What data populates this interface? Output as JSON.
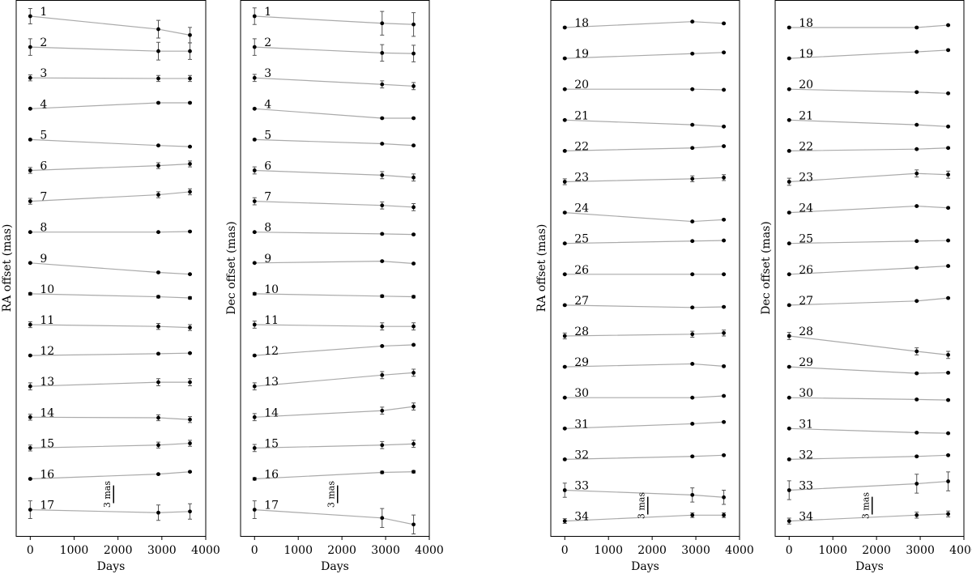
{
  "chart_data": [
    {
      "type": "offset-stack",
      "xlabel": "Days",
      "ylabel": "RA offset (mas)",
      "x": [
        0,
        2920,
        3640
      ],
      "xlim": [
        -320,
        4000
      ],
      "xticks": [
        0,
        1000,
        2000,
        3000,
        4000
      ],
      "line_color": "#aaaaaa",
      "color": "#000000",
      "scale_bar": {
        "value": 3,
        "label": "3 mas"
      },
      "series": [
        {
          "name": "1",
          "values": [
            0,
            -2.2,
            -3.2
          ],
          "errors": [
            1.3,
            1.5,
            1.3
          ]
        },
        {
          "name": "2",
          "values": [
            0,
            -0.7,
            -0.7
          ],
          "errors": [
            1.4,
            1.5,
            1.4
          ]
        },
        {
          "name": "3",
          "values": [
            0,
            -0.1,
            -0.1
          ],
          "errors": [
            0.5,
            0.5,
            0.5
          ]
        },
        {
          "name": "4",
          "values": [
            0,
            1.0,
            1.0
          ],
          "errors": [
            0.1,
            0.1,
            0.1
          ]
        },
        {
          "name": "5",
          "values": [
            0,
            -1.0,
            -1.2
          ],
          "errors": [
            0.1,
            0.1,
            0.1
          ]
        },
        {
          "name": "6",
          "values": [
            0,
            0.8,
            1.1
          ],
          "errors": [
            0.5,
            0.5,
            0.5
          ]
        },
        {
          "name": "7",
          "values": [
            0,
            1.1,
            1.6
          ],
          "errors": [
            0.5,
            0.5,
            0.5
          ]
        },
        {
          "name": "8",
          "values": [
            0,
            0,
            0.1
          ],
          "errors": [
            0.1,
            0.1,
            0.1
          ]
        },
        {
          "name": "9",
          "values": [
            0,
            -1.6,
            -1.9
          ],
          "errors": [
            0.1,
            0.1,
            0.1
          ]
        },
        {
          "name": "10",
          "values": [
            0,
            -0.5,
            -0.7
          ],
          "errors": [
            0.2,
            0.2,
            0.2
          ]
        },
        {
          "name": "11",
          "values": [
            0,
            -0.3,
            -0.5
          ],
          "errors": [
            0.5,
            0.5,
            0.5
          ]
        },
        {
          "name": "12",
          "values": [
            0,
            0.3,
            0.4
          ],
          "errors": [
            0.1,
            0.1,
            0.1
          ]
        },
        {
          "name": "13",
          "values": [
            0,
            0.7,
            0.7
          ],
          "errors": [
            0.6,
            0.6,
            0.6
          ]
        },
        {
          "name": "14",
          "values": [
            0,
            -0.1,
            -0.4
          ],
          "errors": [
            0.5,
            0.5,
            0.5
          ]
        },
        {
          "name": "15",
          "values": [
            0,
            0.5,
            0.8
          ],
          "errors": [
            0.5,
            0.5,
            0.5
          ]
        },
        {
          "name": "16",
          "values": [
            0,
            0.8,
            1.2
          ],
          "errors": [
            0.1,
            0.1,
            0.1
          ]
        },
        {
          "name": "17",
          "values": [
            0,
            -0.5,
            -0.3
          ],
          "errors": [
            1.5,
            1.3,
            1.3
          ]
        }
      ]
    },
    {
      "type": "offset-stack",
      "xlabel": "Days",
      "ylabel": "Dec offset (mas)",
      "x": [
        0,
        2920,
        3640
      ],
      "xlim": [
        -320,
        4000
      ],
      "xticks": [
        0,
        1000,
        2000,
        3000,
        4000
      ],
      "line_color": "#aaaaaa",
      "color": "#000000",
      "scale_bar": {
        "value": 3,
        "label": "3 mas"
      },
      "series": [
        {
          "name": "1",
          "values": [
            0,
            -1.2,
            -1.4
          ],
          "errors": [
            1.4,
            2.0,
            2.0
          ]
        },
        {
          "name": "2",
          "values": [
            0,
            -1.0,
            -1.1
          ],
          "errors": [
            1.4,
            1.4,
            1.4
          ]
        },
        {
          "name": "3",
          "values": [
            0,
            -1.1,
            -1.4
          ],
          "errors": [
            0.6,
            0.6,
            0.6
          ]
        },
        {
          "name": "4",
          "values": [
            0,
            -1.6,
            -1.6
          ],
          "errors": [
            0.1,
            0.1,
            0.1
          ]
        },
        {
          "name": "5",
          "values": [
            0,
            -0.7,
            -1.0
          ],
          "errors": [
            0.1,
            0.1,
            0.1
          ]
        },
        {
          "name": "6",
          "values": [
            0,
            -0.8,
            -1.2
          ],
          "errors": [
            0.6,
            0.6,
            0.6
          ]
        },
        {
          "name": "7",
          "values": [
            0,
            -0.7,
            -1.0
          ],
          "errors": [
            0.6,
            0.6,
            0.6
          ]
        },
        {
          "name": "8",
          "values": [
            0,
            -0.3,
            -0.4
          ],
          "errors": [
            0.1,
            0.1,
            0.1
          ]
        },
        {
          "name": "9",
          "values": [
            0,
            0.3,
            -0.1
          ],
          "errors": [
            0.1,
            0.1,
            0.1
          ]
        },
        {
          "name": "10",
          "values": [
            0,
            -0.4,
            -0.5
          ],
          "errors": [
            0.2,
            0.2,
            0.2
          ]
        },
        {
          "name": "11",
          "values": [
            0,
            -0.3,
            -0.3
          ],
          "errors": [
            0.6,
            0.6,
            0.6
          ]
        },
        {
          "name": "12",
          "values": [
            0,
            1.6,
            1.8
          ],
          "errors": [
            0.1,
            0.1,
            0.1
          ]
        },
        {
          "name": "13",
          "values": [
            0,
            1.9,
            2.3
          ],
          "errors": [
            0.6,
            0.6,
            0.6
          ]
        },
        {
          "name": "14",
          "values": [
            0,
            1.1,
            1.8
          ],
          "errors": [
            0.6,
            0.6,
            0.6
          ]
        },
        {
          "name": "15",
          "values": [
            0,
            0.5,
            0.7
          ],
          "errors": [
            0.6,
            0.6,
            0.6
          ]
        },
        {
          "name": "16",
          "values": [
            0,
            1.1,
            1.2
          ],
          "errors": [
            0.2,
            0.2,
            0.2
          ]
        },
        {
          "name": "17",
          "values": [
            0,
            -1.4,
            -2.5
          ],
          "errors": [
            1.5,
            1.6,
            1.6
          ]
        }
      ]
    },
    {
      "type": "offset-stack",
      "xlabel": "Days",
      "ylabel": "RA offset (mas)",
      "x": [
        0,
        2920,
        3640
      ],
      "xlim": [
        -320,
        4000
      ],
      "xticks": [
        0,
        1000,
        2000,
        3000,
        4000
      ],
      "line_color": "#aaaaaa",
      "color": "#000000",
      "scale_bar": {
        "value": 3,
        "label": "3 mas"
      },
      "series": [
        {
          "name": "18",
          "values": [
            0,
            1.0,
            0.7
          ],
          "errors": [
            0.1,
            0.1,
            0.1
          ]
        },
        {
          "name": "19",
          "values": [
            0,
            0.8,
            1.0
          ],
          "errors": [
            0.1,
            0.1,
            0.1
          ]
        },
        {
          "name": "20",
          "values": [
            0,
            0,
            -0.1
          ],
          "errors": [
            0.1,
            0.1,
            0.1
          ]
        },
        {
          "name": "21",
          "values": [
            0,
            -0.8,
            -1.1
          ],
          "errors": [
            0.1,
            0.1,
            0.1
          ]
        },
        {
          "name": "22",
          "values": [
            0,
            0.5,
            0.8
          ],
          "errors": [
            0.1,
            0.1,
            0.1
          ]
        },
        {
          "name": "23",
          "values": [
            0,
            0.5,
            0.7
          ],
          "errors": [
            0.5,
            0.5,
            0.5
          ]
        },
        {
          "name": "24",
          "values": [
            0,
            -1.5,
            -1.2
          ],
          "errors": [
            0.1,
            0.1,
            0.1
          ]
        },
        {
          "name": "25",
          "values": [
            0,
            0.4,
            0.5
          ],
          "errors": [
            0.1,
            0.1,
            0.1
          ]
        },
        {
          "name": "26",
          "values": [
            0,
            0,
            0
          ],
          "errors": [
            0.1,
            0.1,
            0.1
          ]
        },
        {
          "name": "27",
          "values": [
            0,
            -0.4,
            -0.3
          ],
          "errors": [
            0.1,
            0.1,
            0.1
          ]
        },
        {
          "name": "28",
          "values": [
            0,
            0.3,
            0.5
          ],
          "errors": [
            0.5,
            0.5,
            0.5
          ]
        },
        {
          "name": "29",
          "values": [
            0,
            0.5,
            0.1
          ],
          "errors": [
            0.1,
            0.1,
            0.1
          ]
        },
        {
          "name": "30",
          "values": [
            0,
            0,
            0.3
          ],
          "errors": [
            0.1,
            0.1,
            0.1
          ]
        },
        {
          "name": "31",
          "values": [
            0,
            0.8,
            1.1
          ],
          "errors": [
            0.1,
            0.1,
            0.1
          ]
        },
        {
          "name": "32",
          "values": [
            0,
            0.5,
            0.7
          ],
          "errors": [
            0.1,
            0.1,
            0.1
          ]
        },
        {
          "name": "33",
          "values": [
            0,
            -0.8,
            -1.2
          ],
          "errors": [
            1.2,
            1.2,
            1.2
          ]
        },
        {
          "name": "34",
          "values": [
            0,
            1.0,
            1.0
          ],
          "errors": [
            0.4,
            0.4,
            0.4
          ]
        }
      ]
    },
    {
      "type": "offset-stack",
      "xlabel": "Days",
      "ylabel": "Dec offset (mas)",
      "x": [
        0,
        2920,
        3640
      ],
      "xlim": [
        -320,
        4000
      ],
      "xticks": [
        0,
        1000,
        2000,
        3000,
        4000
      ],
      "line_color": "#aaaaaa",
      "color": "#000000",
      "scale_bar": {
        "value": 3,
        "label": "3 mas"
      },
      "series": [
        {
          "name": "18",
          "values": [
            0,
            0,
            0.4
          ],
          "errors": [
            0.1,
            0.1,
            0.1
          ]
        },
        {
          "name": "19",
          "values": [
            0,
            1.1,
            1.4
          ],
          "errors": [
            0.1,
            0.1,
            0.1
          ]
        },
        {
          "name": "20",
          "values": [
            0,
            -0.5,
            -0.7
          ],
          "errors": [
            0.1,
            0.1,
            0.1
          ]
        },
        {
          "name": "21",
          "values": [
            0,
            -0.8,
            -1.1
          ],
          "errors": [
            0.1,
            0.1,
            0.1
          ]
        },
        {
          "name": "22",
          "values": [
            0,
            0.3,
            0.5
          ],
          "errors": [
            0.1,
            0.1,
            0.1
          ]
        },
        {
          "name": "23",
          "values": [
            0,
            1.4,
            1.2
          ],
          "errors": [
            0.6,
            0.6,
            0.6
          ]
        },
        {
          "name": "24",
          "values": [
            0,
            1.1,
            0.8
          ],
          "errors": [
            0.1,
            0.1,
            0.1
          ]
        },
        {
          "name": "25",
          "values": [
            0,
            0.4,
            0.5
          ],
          "errors": [
            0.1,
            0.1,
            0.1
          ]
        },
        {
          "name": "26",
          "values": [
            0,
            1.1,
            1.4
          ],
          "errors": [
            0.1,
            0.1,
            0.1
          ]
        },
        {
          "name": "27",
          "values": [
            0,
            0.7,
            1.2
          ],
          "errors": [
            0.1,
            0.1,
            0.1
          ]
        },
        {
          "name": "28",
          "values": [
            0,
            -2.6,
            -3.2
          ],
          "errors": [
            0.6,
            0.6,
            0.6
          ]
        },
        {
          "name": "29",
          "values": [
            0,
            -1.1,
            -1.0
          ],
          "errors": [
            0.1,
            0.1,
            0.1
          ]
        },
        {
          "name": "30",
          "values": [
            0,
            -0.3,
            -0.4
          ],
          "errors": [
            0.1,
            0.1,
            0.1
          ]
        },
        {
          "name": "31",
          "values": [
            0,
            -0.7,
            -0.8
          ],
          "errors": [
            0.1,
            0.1,
            0.1
          ]
        },
        {
          "name": "32",
          "values": [
            0,
            0.5,
            0.7
          ],
          "errors": [
            0.1,
            0.1,
            0.1
          ]
        },
        {
          "name": "33",
          "values": [
            0,
            1.1,
            1.5
          ],
          "errors": [
            1.6,
            1.6,
            1.6
          ]
        },
        {
          "name": "34",
          "values": [
            0,
            1.0,
            1.2
          ],
          "errors": [
            0.5,
            0.5,
            0.5
          ]
        }
      ]
    }
  ]
}
